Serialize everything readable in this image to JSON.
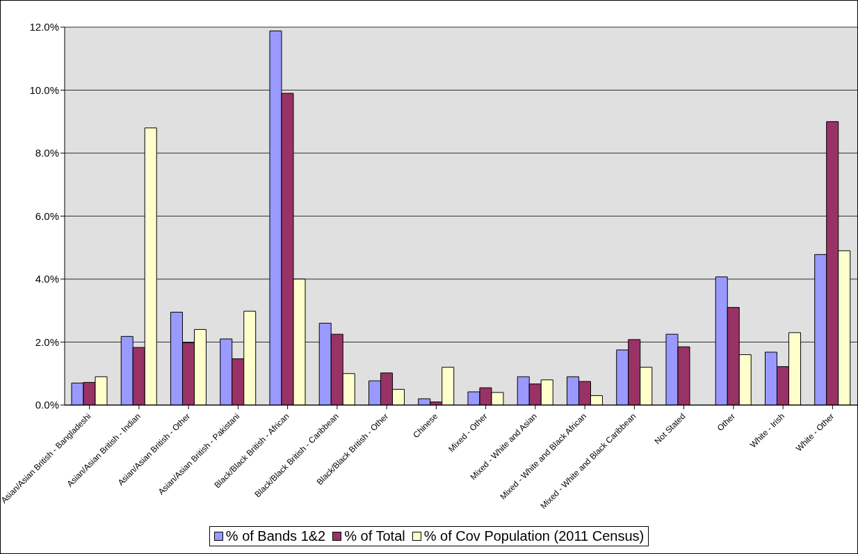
{
  "chart_data": {
    "type": "bar",
    "categories": [
      "Asian/Asian British - Bangladeshi",
      "Asian/Asian British - Indian",
      "Asian/Asian British - Other",
      "Asian/Asian British - Pakistani",
      "Black/Black British - African",
      "Black/Black British - Caribbean",
      "Black/Black British - Other",
      "Chinese",
      "Mixed - Other",
      "Mixed - White and Asian",
      "Mixed - White and Black African",
      "Mixed - White and Black Caribbean",
      "Not Stated",
      "Other",
      "White - Irish",
      "White - Other"
    ],
    "series": [
      {
        "name": "% of Bands 1&2",
        "color": "#9999ff",
        "values": [
          0.7,
          2.18,
          2.95,
          2.1,
          11.88,
          2.6,
          0.77,
          0.2,
          0.42,
          0.9,
          0.9,
          1.75,
          2.25,
          4.07,
          1.68,
          4.78
        ]
      },
      {
        "name": "% of Total",
        "color": "#993366",
        "values": [
          0.72,
          1.83,
          1.98,
          1.47,
          9.9,
          2.25,
          1.02,
          0.1,
          0.55,
          0.67,
          0.75,
          2.08,
          1.85,
          3.1,
          1.22,
          9.0
        ]
      },
      {
        "name": "% of Cov Population (2011 Census)",
        "color": "#ffffcc",
        "values": [
          0.9,
          8.8,
          2.4,
          2.98,
          4.0,
          1.0,
          0.5,
          1.2,
          0.4,
          0.8,
          0.3,
          1.2,
          null,
          1.6,
          2.3,
          4.9
        ]
      }
    ],
    "ylim": [
      0,
      12
    ],
    "yticks": [
      {
        "value": 0,
        "label": "0.0%"
      },
      {
        "value": 2,
        "label": "2.0%"
      },
      {
        "value": 4,
        "label": "4.0%"
      },
      {
        "value": 6,
        "label": "6.0%"
      },
      {
        "value": 8,
        "label": "8.0%"
      },
      {
        "value": 10,
        "label": "10.0%"
      },
      {
        "value": 12,
        "label": "12.0%"
      }
    ],
    "grid": "y",
    "legend": "bottom"
  }
}
